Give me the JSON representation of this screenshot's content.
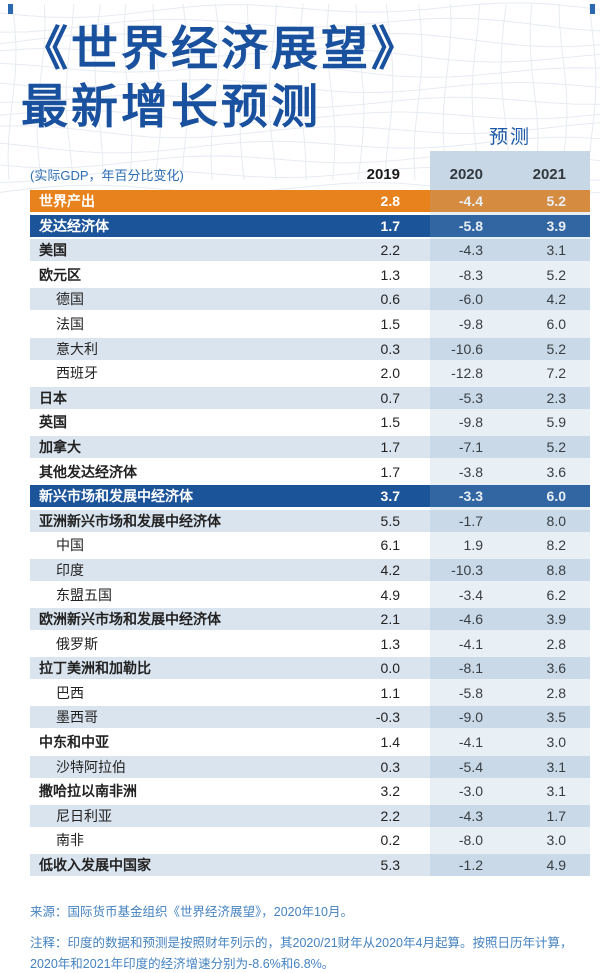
{
  "page": {
    "title_line1": "《世界经济展望》",
    "title_line2": "最新增长预测",
    "forecast_label": "预测",
    "subtitle": "(实际GDP，年百分比变化)",
    "col_headers": [
      "2019",
      "2020",
      "2021"
    ]
  },
  "table": {
    "rows": [
      {
        "label": "世界产出",
        "values": [
          "2.8",
          "-4.4",
          "5.2"
        ],
        "bg": "orange",
        "bold": true,
        "indent": false
      },
      {
        "label": "发达经济体",
        "values": [
          "1.7",
          "-5.8",
          "3.9"
        ],
        "bg": "navy",
        "bold": true,
        "indent": false
      },
      {
        "label": "美国",
        "values": [
          "2.2",
          "-4.3",
          "3.1"
        ],
        "bg": "shade",
        "bold": true,
        "indent": false
      },
      {
        "label": "欧元区",
        "values": [
          "1.3",
          "-8.3",
          "5.2"
        ],
        "bg": "plain",
        "bold": true,
        "indent": false
      },
      {
        "label": "德国",
        "values": [
          "0.6",
          "-6.0",
          "4.2"
        ],
        "bg": "shade",
        "bold": false,
        "indent": true
      },
      {
        "label": "法国",
        "values": [
          "1.5",
          "-9.8",
          "6.0"
        ],
        "bg": "plain",
        "bold": false,
        "indent": true
      },
      {
        "label": "意大利",
        "values": [
          "0.3",
          "-10.6",
          "5.2"
        ],
        "bg": "shade",
        "bold": false,
        "indent": true
      },
      {
        "label": "西班牙",
        "values": [
          "2.0",
          "-12.8",
          "7.2"
        ],
        "bg": "plain",
        "bold": false,
        "indent": true
      },
      {
        "label": "日本",
        "values": [
          "0.7",
          "-5.3",
          "2.3"
        ],
        "bg": "shade",
        "bold": true,
        "indent": false
      },
      {
        "label": "英国",
        "values": [
          "1.5",
          "-9.8",
          "5.9"
        ],
        "bg": "plain",
        "bold": true,
        "indent": false
      },
      {
        "label": "加拿大",
        "values": [
          "1.7",
          "-7.1",
          "5.2"
        ],
        "bg": "shade",
        "bold": true,
        "indent": false
      },
      {
        "label": "其他发达经济体",
        "values": [
          "1.7",
          "-3.8",
          "3.6"
        ],
        "bg": "plain",
        "bold": true,
        "indent": false
      },
      {
        "label": "新兴市场和发展中经济体",
        "values": [
          "3.7",
          "-3.3",
          "6.0"
        ],
        "bg": "navy",
        "bold": true,
        "indent": false
      },
      {
        "label": "亚洲新兴市场和发展中经济体",
        "values": [
          "5.5",
          "-1.7",
          "8.0"
        ],
        "bg": "shade",
        "bold": true,
        "indent": false
      },
      {
        "label": "中国",
        "values": [
          "6.1",
          "1.9",
          "8.2"
        ],
        "bg": "plain",
        "bold": false,
        "indent": true
      },
      {
        "label": "印度",
        "values": [
          "4.2",
          "-10.3",
          "8.8"
        ],
        "bg": "shade",
        "bold": false,
        "indent": true
      },
      {
        "label": "东盟五国",
        "values": [
          "4.9",
          "-3.4",
          "6.2"
        ],
        "bg": "plain",
        "bold": false,
        "indent": true
      },
      {
        "label": "欧洲新兴市场和发展中经济体",
        "values": [
          "2.1",
          "-4.6",
          "3.9"
        ],
        "bg": "shade",
        "bold": true,
        "indent": false
      },
      {
        "label": "俄罗斯",
        "values": [
          "1.3",
          "-4.1",
          "2.8"
        ],
        "bg": "plain",
        "bold": false,
        "indent": true
      },
      {
        "label": "拉丁美洲和加勒比",
        "values": [
          "0.0",
          "-8.1",
          "3.6"
        ],
        "bg": "shade",
        "bold": true,
        "indent": false
      },
      {
        "label": "巴西",
        "values": [
          "1.1",
          "-5.8",
          "2.8"
        ],
        "bg": "plain",
        "bold": false,
        "indent": true
      },
      {
        "label": "墨西哥",
        "values": [
          "-0.3",
          "-9.0",
          "3.5"
        ],
        "bg": "shade",
        "bold": false,
        "indent": true
      },
      {
        "label": "中东和中亚",
        "values": [
          "1.4",
          "-4.1",
          "3.0"
        ],
        "bg": "plain",
        "bold": true,
        "indent": false
      },
      {
        "label": "沙特阿拉伯",
        "values": [
          "0.3",
          "-5.4",
          "3.1"
        ],
        "bg": "shade",
        "bold": false,
        "indent": true
      },
      {
        "label": "撒哈拉以南非洲",
        "values": [
          "3.2",
          "-3.0",
          "3.1"
        ],
        "bg": "plain",
        "bold": true,
        "indent": false
      },
      {
        "label": "尼日利亚",
        "values": [
          "2.2",
          "-4.3",
          "1.7"
        ],
        "bg": "shade",
        "bold": false,
        "indent": true
      },
      {
        "label": "南非",
        "values": [
          "0.2",
          "-8.0",
          "3.0"
        ],
        "bg": "plain",
        "bold": false,
        "indent": true
      },
      {
        "label": "低收入发展中国家",
        "values": [
          "5.3",
          "-1.2",
          "4.9"
        ],
        "bg": "shade",
        "bold": true,
        "indent": false
      }
    ]
  },
  "footer": {
    "source": "来源：国际货币基金组织《世界经济展望》，2020年10月。",
    "note_line1": "注释：印度的数据和预测是按照财年列示的，其2020/21财年从2020年4月起算。按照日历年计算，",
    "note_line2": "2020年和2021年印度的经济增速分别为-8.6%和6.8%。"
  },
  "colors": {
    "title_blue": "#1A519F",
    "accent_orange": "#E8821D",
    "navy": "#1C5499",
    "row_shade": "#DAE4EF",
    "forecast_band": "#D7E1ED",
    "footer_blue": "#4583C1"
  },
  "chart_data": {
    "type": "table",
    "title": "《世界经济展望》最新增长预测",
    "unit": "实际GDP，年百分比变化",
    "columns": [
      "2019",
      "2020",
      "2021"
    ],
    "forecast_columns": [
      "2020",
      "2021"
    ],
    "rows": [
      {
        "label": "世界产出",
        "values": [
          2.8,
          -4.4,
          5.2
        ]
      },
      {
        "label": "发达经济体",
        "values": [
          1.7,
          -5.8,
          3.9
        ]
      },
      {
        "label": "美国",
        "values": [
          2.2,
          -4.3,
          3.1
        ]
      },
      {
        "label": "欧元区",
        "values": [
          1.3,
          -8.3,
          5.2
        ]
      },
      {
        "label": "德国",
        "values": [
          0.6,
          -6.0,
          4.2
        ]
      },
      {
        "label": "法国",
        "values": [
          1.5,
          -9.8,
          6.0
        ]
      },
      {
        "label": "意大利",
        "values": [
          0.3,
          -10.6,
          5.2
        ]
      },
      {
        "label": "西班牙",
        "values": [
          2.0,
          -12.8,
          7.2
        ]
      },
      {
        "label": "日本",
        "values": [
          0.7,
          -5.3,
          2.3
        ]
      },
      {
        "label": "英国",
        "values": [
          1.5,
          -9.8,
          5.9
        ]
      },
      {
        "label": "加拿大",
        "values": [
          1.7,
          -7.1,
          5.2
        ]
      },
      {
        "label": "其他发达经济体",
        "values": [
          1.7,
          -3.8,
          3.6
        ]
      },
      {
        "label": "新兴市场和发展中经济体",
        "values": [
          3.7,
          -3.3,
          6.0
        ]
      },
      {
        "label": "亚洲新兴市场和发展中经济体",
        "values": [
          5.5,
          -1.7,
          8.0
        ]
      },
      {
        "label": "中国",
        "values": [
          6.1,
          1.9,
          8.2
        ]
      },
      {
        "label": "印度",
        "values": [
          4.2,
          -10.3,
          8.8
        ]
      },
      {
        "label": "东盟五国",
        "values": [
          4.9,
          -3.4,
          6.2
        ]
      },
      {
        "label": "欧洲新兴市场和发展中经济体",
        "values": [
          2.1,
          -4.6,
          3.9
        ]
      },
      {
        "label": "俄罗斯",
        "values": [
          1.3,
          -4.1,
          2.8
        ]
      },
      {
        "label": "拉丁美洲和加勒比",
        "values": [
          0.0,
          -8.1,
          3.6
        ]
      },
      {
        "label": "巴西",
        "values": [
          1.1,
          -5.8,
          2.8
        ]
      },
      {
        "label": "墨西哥",
        "values": [
          -0.3,
          -9.0,
          3.5
        ]
      },
      {
        "label": "中东和中亚",
        "values": [
          1.4,
          -4.1,
          3.0
        ]
      },
      {
        "label": "沙特阿拉伯",
        "values": [
          0.3,
          -5.4,
          3.1
        ]
      },
      {
        "label": "撒哈拉以南非洲",
        "values": [
          3.2,
          -3.0,
          3.1
        ]
      },
      {
        "label": "尼日利亚",
        "values": [
          2.2,
          -4.3,
          1.7
        ]
      },
      {
        "label": "南非",
        "values": [
          0.2,
          -8.0,
          3.0
        ]
      },
      {
        "label": "低收入发展中国家",
        "values": [
          5.3,
          -1.2,
          4.9
        ]
      }
    ],
    "source": "国际货币基金组织《世界经济展望》，2020年10月"
  }
}
